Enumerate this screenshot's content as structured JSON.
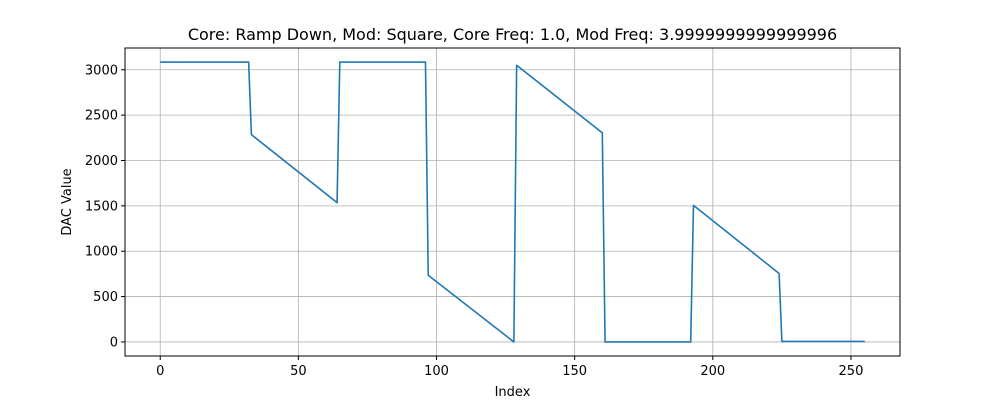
{
  "chart_data": {
    "type": "line",
    "title": "Core: Ramp Down, Mod: Square, Core Freq: 1.0, Mod Freq: 3.9999999999999996",
    "xlabel": "Index",
    "ylabel": "DAC Value",
    "xlim": [
      -12.75,
      267.75
    ],
    "ylim": [
      -155,
      3240
    ],
    "xticks": [
      0,
      50,
      100,
      150,
      200,
      250
    ],
    "yticks": [
      0,
      500,
      1000,
      1500,
      2000,
      2500,
      3000
    ],
    "grid": true,
    "line_color": "#1f77b4",
    "series": [
      {
        "x": [
          0,
          32,
          33,
          64,
          65,
          96,
          97,
          128,
          129,
          160,
          161,
          192,
          193,
          224,
          225,
          255
        ],
        "y": [
          3085,
          3085,
          2285,
          1535,
          3085,
          3085,
          735,
          0,
          3050,
          2305,
          0,
          0,
          1505,
          755,
          5,
          5
        ]
      }
    ]
  }
}
